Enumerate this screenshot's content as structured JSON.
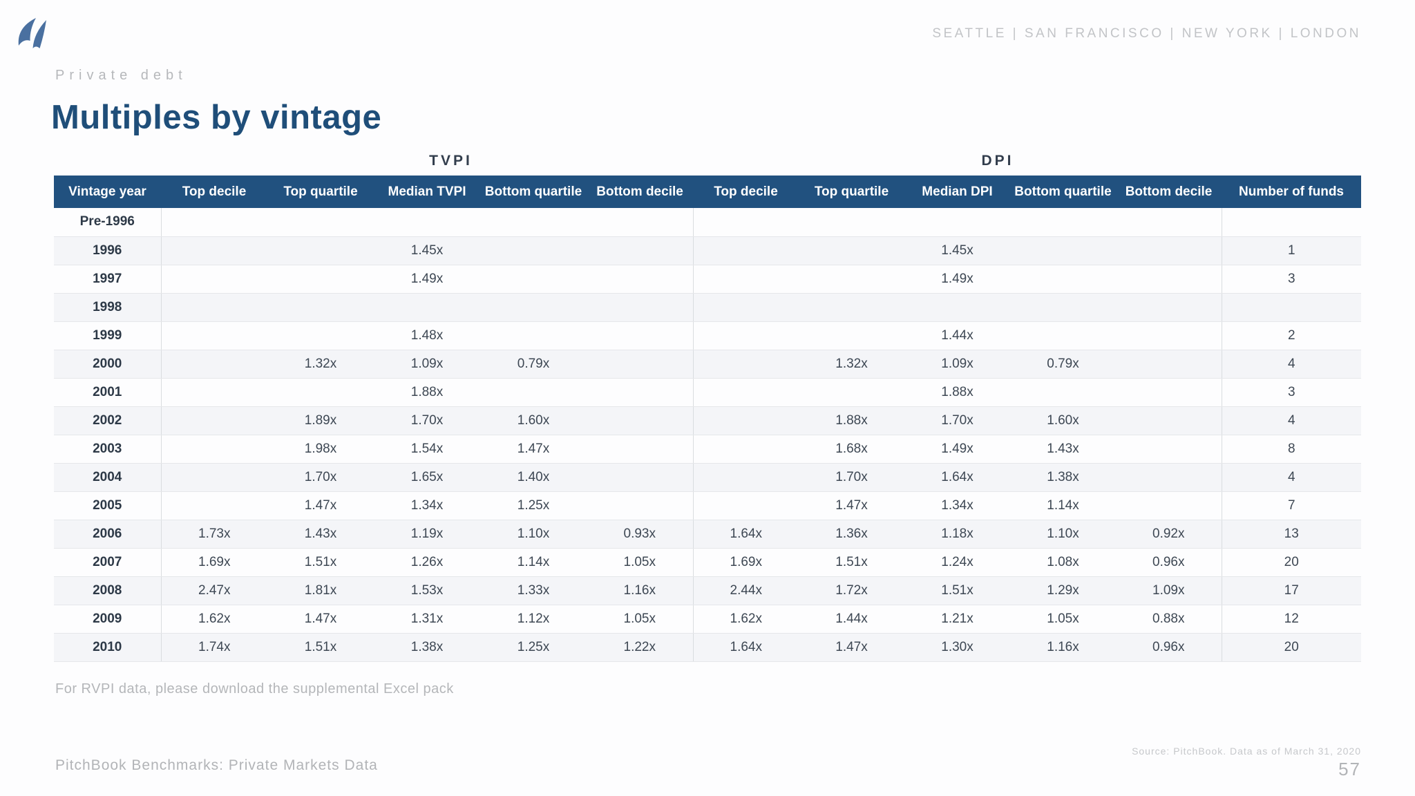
{
  "header": {
    "logo": "pitchbook-wing-logo",
    "locations": [
      "SEATTLE",
      "SAN FRANCISCO",
      "NEW YORK",
      "LONDON"
    ],
    "locations_text": "SEATTLE  |  SAN FRANCISCO  |  NEW YORK  |  LONDON"
  },
  "page": {
    "eyebrow": "Private debt",
    "title": "Multiples by vintage",
    "footnote": "For RVPI data, please download the supplemental Excel pack",
    "footer_brand": "PitchBook Benchmarks: Private Markets Data",
    "source_note": "Source: PitchBook. Data as of March 31, 2020",
    "page_number": "57"
  },
  "table": {
    "group_headers": [
      {
        "label": "TVPI"
      },
      {
        "label": "DPI"
      }
    ],
    "columns": [
      "Vintage year",
      "Top decile",
      "Top quartile",
      "Median TVPI",
      "Bottom quartile",
      "Bottom decile",
      "Top decile",
      "Top quartile",
      "Median DPI",
      "Bottom quartile",
      "Bottom decile",
      "Number of funds"
    ],
    "rows": [
      [
        "Pre-1996",
        "",
        "",
        "",
        "",
        "",
        "",
        "",
        "",
        "",
        "",
        ""
      ],
      [
        "1996",
        "",
        "",
        "1.45x",
        "",
        "",
        "",
        "",
        "1.45x",
        "",
        "",
        "1"
      ],
      [
        "1997",
        "",
        "",
        "1.49x",
        "",
        "",
        "",
        "",
        "1.49x",
        "",
        "",
        "3"
      ],
      [
        "1998",
        "",
        "",
        "",
        "",
        "",
        "",
        "",
        "",
        "",
        "",
        ""
      ],
      [
        "1999",
        "",
        "",
        "1.48x",
        "",
        "",
        "",
        "",
        "1.44x",
        "",
        "",
        "2"
      ],
      [
        "2000",
        "",
        "1.32x",
        "1.09x",
        "0.79x",
        "",
        "",
        "1.32x",
        "1.09x",
        "0.79x",
        "",
        "4"
      ],
      [
        "2001",
        "",
        "",
        "1.88x",
        "",
        "",
        "",
        "",
        "1.88x",
        "",
        "",
        "3"
      ],
      [
        "2002",
        "",
        "1.89x",
        "1.70x",
        "1.60x",
        "",
        "",
        "1.88x",
        "1.70x",
        "1.60x",
        "",
        "4"
      ],
      [
        "2003",
        "",
        "1.98x",
        "1.54x",
        "1.47x",
        "",
        "",
        "1.68x",
        "1.49x",
        "1.43x",
        "",
        "8"
      ],
      [
        "2004",
        "",
        "1.70x",
        "1.65x",
        "1.40x",
        "",
        "",
        "1.70x",
        "1.64x",
        "1.38x",
        "",
        "4"
      ],
      [
        "2005",
        "",
        "1.47x",
        "1.34x",
        "1.25x",
        "",
        "",
        "1.47x",
        "1.34x",
        "1.14x",
        "",
        "7"
      ],
      [
        "2006",
        "1.73x",
        "1.43x",
        "1.19x",
        "1.10x",
        "0.93x",
        "1.64x",
        "1.36x",
        "1.18x",
        "1.10x",
        "0.92x",
        "13"
      ],
      [
        "2007",
        "1.69x",
        "1.51x",
        "1.26x",
        "1.14x",
        "1.05x",
        "1.69x",
        "1.51x",
        "1.24x",
        "1.08x",
        "0.96x",
        "20"
      ],
      [
        "2008",
        "2.47x",
        "1.81x",
        "1.53x",
        "1.33x",
        "1.16x",
        "2.44x",
        "1.72x",
        "1.51x",
        "1.29x",
        "1.09x",
        "17"
      ],
      [
        "2009",
        "1.62x",
        "1.47x",
        "1.31x",
        "1.12x",
        "1.05x",
        "1.62x",
        "1.44x",
        "1.21x",
        "1.05x",
        "0.88x",
        "12"
      ],
      [
        "2010",
        "1.74x",
        "1.51x",
        "1.38x",
        "1.25x",
        "1.22x",
        "1.64x",
        "1.47x",
        "1.30x",
        "1.16x",
        "0.96x",
        "20"
      ]
    ]
  },
  "colors": {
    "header_bar": "#21517F",
    "title_blue": "#1F4E79",
    "logo_blue": "#4A70A0",
    "row_stripe": "#F4F5F8",
    "muted_gray": "#B4B6B9"
  }
}
